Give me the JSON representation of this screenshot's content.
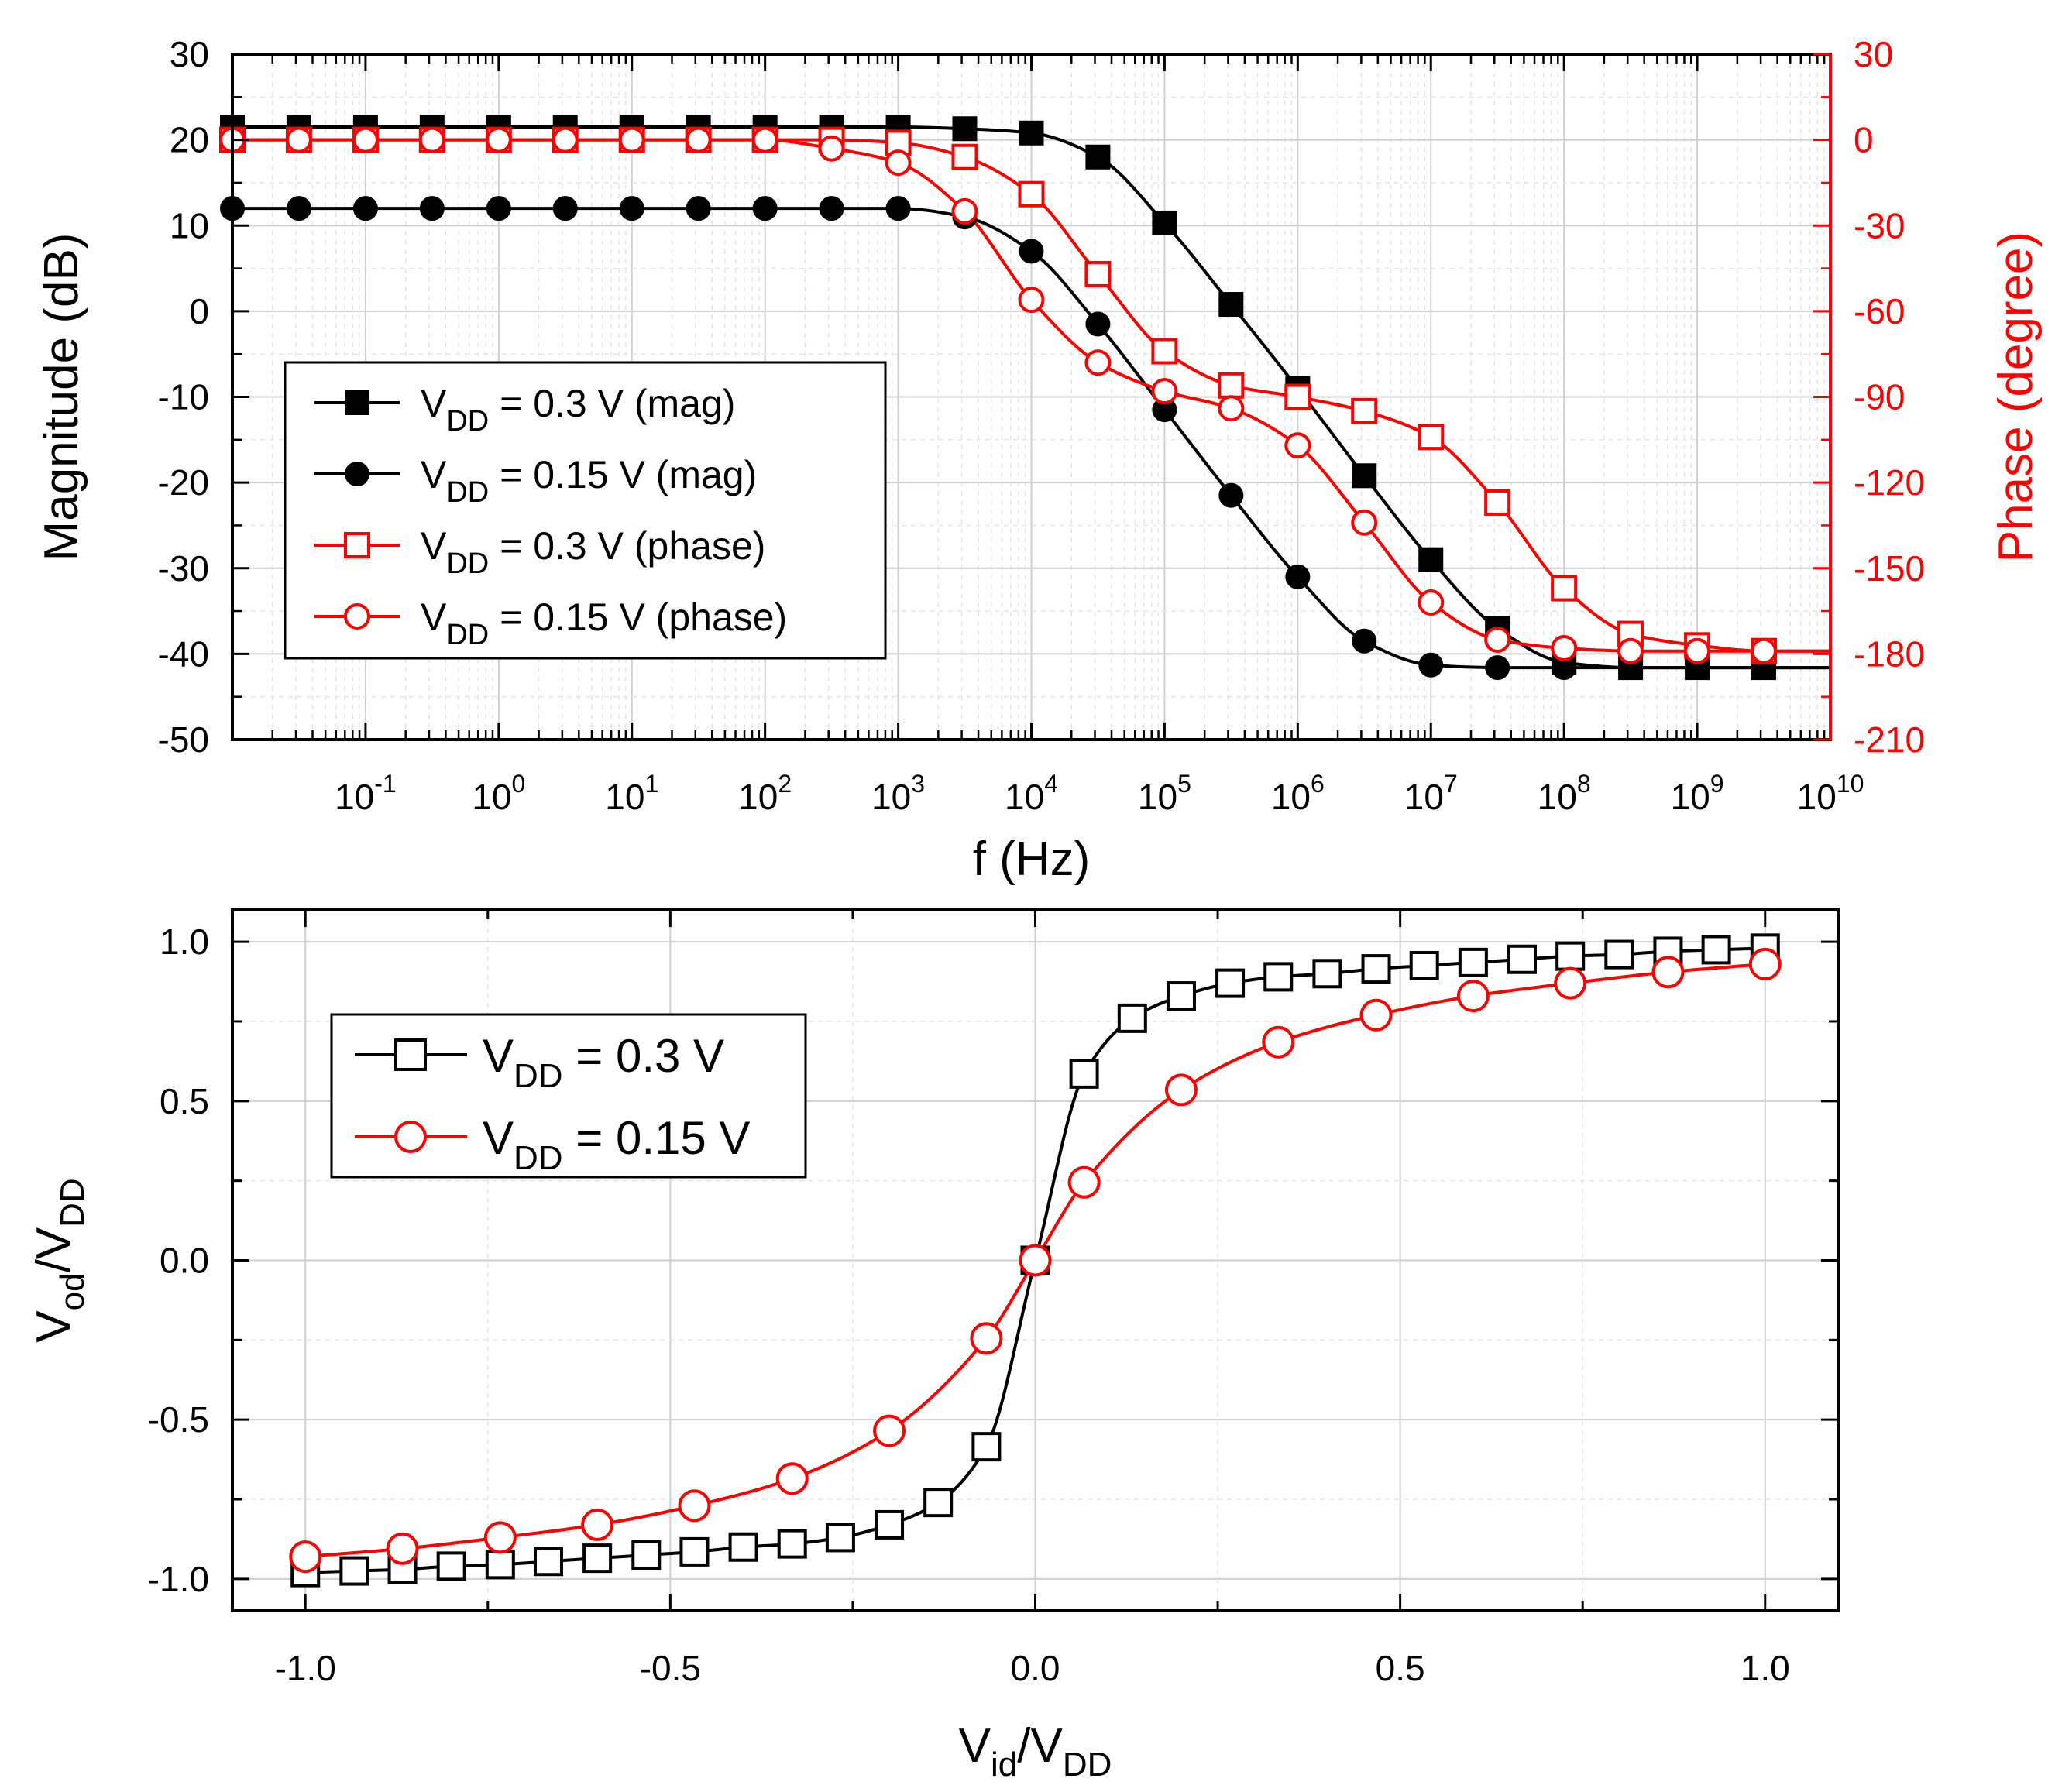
{
  "chart_data": [
    {
      "type": "line",
      "title": "",
      "xlabel": "f (Hz)",
      "xscale": "log",
      "xlim": [
        0.01,
        10000000000
      ],
      "x_tick_labels": [
        {
          "exp": -1,
          "text": "10",
          "sup": "-1"
        },
        {
          "exp": 0,
          "text": "10",
          "sup": "0"
        },
        {
          "exp": 1,
          "text": "10",
          "sup": "1"
        },
        {
          "exp": 2,
          "text": "10",
          "sup": "2"
        },
        {
          "exp": 3,
          "text": "10",
          "sup": "3"
        },
        {
          "exp": 4,
          "text": "10",
          "sup": "4"
        },
        {
          "exp": 5,
          "text": "10",
          "sup": "5"
        },
        {
          "exp": 6,
          "text": "10",
          "sup": "6"
        },
        {
          "exp": 7,
          "text": "10",
          "sup": "7"
        },
        {
          "exp": 8,
          "text": "10",
          "sup": "8"
        },
        {
          "exp": 9,
          "text": "10",
          "sup": "9"
        },
        {
          "exp": 10,
          "text": "10",
          "sup": "10"
        }
      ],
      "ylabel_left": "Magnitude (dB)",
      "ylim_left": [
        -50,
        30
      ],
      "yticks_left": [
        30,
        20,
        10,
        0,
        -10,
        -20,
        -30,
        -40,
        -50
      ],
      "ylabel_right": "Phase (degree)",
      "ylim_right": [
        -210,
        30
      ],
      "yticks_right": [
        30,
        0,
        -30,
        -60,
        -90,
        -120,
        -150,
        -180,
        -210
      ],
      "legend_position": "bottom-left",
      "series": [
        {
          "name": "V_DD = 0.3 V (mag)",
          "legend": {
            "pre": "V",
            "sub": "DD",
            "post": " = 0.3 V (mag)"
          },
          "axis": "left",
          "marker": "filled-square",
          "color": "#000000",
          "x": [
            0.01,
            0.0316,
            0.1,
            0.316,
            1,
            3.16,
            10,
            31.6,
            100,
            316,
            1000,
            3160,
            10000,
            31600,
            100000,
            316000,
            1000000,
            3160000,
            10000000,
            31600000,
            100000000,
            316000000,
            1000000000,
            3160000000
          ],
          "y": [
            21.5,
            21.5,
            21.5,
            21.5,
            21.5,
            21.5,
            21.5,
            21.5,
            21.5,
            21.5,
            21.5,
            21.3,
            20.8,
            18,
            10.3,
            0.8,
            -9,
            -19.2,
            -29,
            -37,
            -41,
            -41.6,
            -41.6,
            -41.6
          ]
        },
        {
          "name": "V_DD = 0.15 V (mag)",
          "legend": {
            "pre": "V",
            "sub": "DD",
            "post": " = 0.15 V (mag)"
          },
          "axis": "left",
          "marker": "filled-circle",
          "color": "#000000",
          "x": [
            0.01,
            0.0316,
            0.1,
            0.316,
            1,
            3.16,
            10,
            31.6,
            100,
            316,
            1000,
            3160,
            10000,
            31600,
            100000,
            316000,
            1000000,
            3160000,
            10000000,
            31600000,
            100000000
          ],
          "y": [
            12,
            12,
            12,
            12,
            12,
            12,
            12,
            12,
            12,
            12,
            12,
            11,
            7,
            -1.5,
            -11.5,
            -21.5,
            -31,
            -38.5,
            -41.3,
            -41.6,
            -41.6
          ]
        },
        {
          "name": "V_DD = 0.3 V (phase)",
          "legend": {
            "pre": "V",
            "sub": "DD",
            "post": " = 0.3 V (phase)"
          },
          "axis": "right",
          "marker": "open-square",
          "color": "#ff0000",
          "x": [
            0.01,
            0.0316,
            0.1,
            0.316,
            1,
            3.16,
            10,
            31.6,
            100,
            316,
            1000,
            3160,
            10000,
            31600,
            100000,
            316000,
            1000000,
            3160000,
            10000000,
            31600000,
            100000000,
            316000000,
            1000000000,
            3160000000
          ],
          "y": [
            0,
            0,
            0,
            0,
            0,
            0,
            0,
            0,
            0,
            0,
            -1,
            -6,
            -19,
            -47,
            -74,
            -86,
            -90,
            -95,
            -104,
            -127,
            -157,
            -173,
            -177,
            -179
          ]
        },
        {
          "name": "V_DD = 0.15 V (phase)",
          "legend": {
            "pre": "V",
            "sub": "DD",
            "post": " = 0.15 V (phase)"
          },
          "axis": "right",
          "marker": "open-circle",
          "color": "#ff0000",
          "x": [
            0.01,
            0.0316,
            0.1,
            0.316,
            1,
            3.16,
            10,
            31.6,
            100,
            316,
            1000,
            3160,
            10000,
            31600,
            100000,
            316000,
            1000000,
            3160000,
            10000000,
            31600000,
            100000000,
            316000000,
            1000000000,
            3160000000
          ],
          "y": [
            0,
            0,
            0,
            0,
            0,
            0,
            0,
            0,
            0,
            -3,
            -8,
            -25,
            -56,
            -78,
            -88,
            -94,
            -107,
            -134,
            -162,
            -175,
            -178,
            -179,
            -179,
            -179
          ]
        }
      ]
    },
    {
      "type": "line",
      "title": "",
      "xlabel": {
        "pre": "V",
        "sub": "id",
        "mid": "/V",
        "sub2": "DD"
      },
      "ylabel": {
        "pre": "V",
        "sub": "od",
        "mid": "/V",
        "sub2": "DD"
      },
      "xlim": [
        -1.1,
        1.1
      ],
      "ylim": [
        -1.1,
        1.1
      ],
      "xticks": [
        -1.0,
        -0.5,
        0.0,
        0.5,
        1.0
      ],
      "xtick_labels": [
        "-1.0",
        "-0.5",
        "0.0",
        "0.5",
        "1.0"
      ],
      "yticks": [
        1.0,
        0.5,
        0.0,
        -0.5,
        -1.0
      ],
      "ytick_labels": [
        "1.0",
        "0.5",
        "0.0",
        "-0.5",
        "-1.0"
      ],
      "legend_position": "top-left",
      "series": [
        {
          "name": "V_DD = 0.3 V",
          "legend": {
            "pre": "V",
            "sub": "DD",
            "post": " = 0.3 V"
          },
          "marker": "open-square",
          "color": "#000000",
          "x": [
            -1.0,
            -0.933,
            -0.867,
            -0.8,
            -0.733,
            -0.667,
            -0.6,
            -0.533,
            -0.467,
            -0.4,
            -0.333,
            -0.267,
            -0.2,
            -0.133,
            -0.067,
            0.0,
            0.067,
            0.133,
            0.2,
            0.267,
            0.333,
            0.4,
            0.467,
            0.533,
            0.6,
            0.667,
            0.733,
            0.8,
            0.867,
            0.933,
            1.0
          ],
          "y": [
            -0.98,
            -0.975,
            -0.97,
            -0.96,
            -0.955,
            -0.945,
            -0.935,
            -0.925,
            -0.915,
            -0.9,
            -0.89,
            -0.87,
            -0.83,
            -0.76,
            -0.585,
            0.0,
            0.585,
            0.76,
            0.83,
            0.87,
            0.89,
            0.9,
            0.915,
            0.925,
            0.935,
            0.945,
            0.955,
            0.96,
            0.97,
            0.975,
            0.98
          ]
        },
        {
          "name": "V_DD = 0.15 V",
          "legend": {
            "pre": "V",
            "sub": "DD",
            "post": " = 0.15 V"
          },
          "marker": "open-circle",
          "color": "#ff0000",
          "x": [
            -1.0,
            -0.867,
            -0.733,
            -0.6,
            -0.467,
            -0.333,
            -0.2,
            -0.067,
            0.0,
            0.067,
            0.2,
            0.333,
            0.467,
            0.6,
            0.733,
            0.867,
            1.0
          ],
          "y": [
            -0.93,
            -0.905,
            -0.87,
            -0.83,
            -0.77,
            -0.685,
            -0.535,
            -0.245,
            0.0,
            0.245,
            0.535,
            0.685,
            0.77,
            0.83,
            0.87,
            0.905,
            0.93
          ]
        }
      ]
    }
  ]
}
